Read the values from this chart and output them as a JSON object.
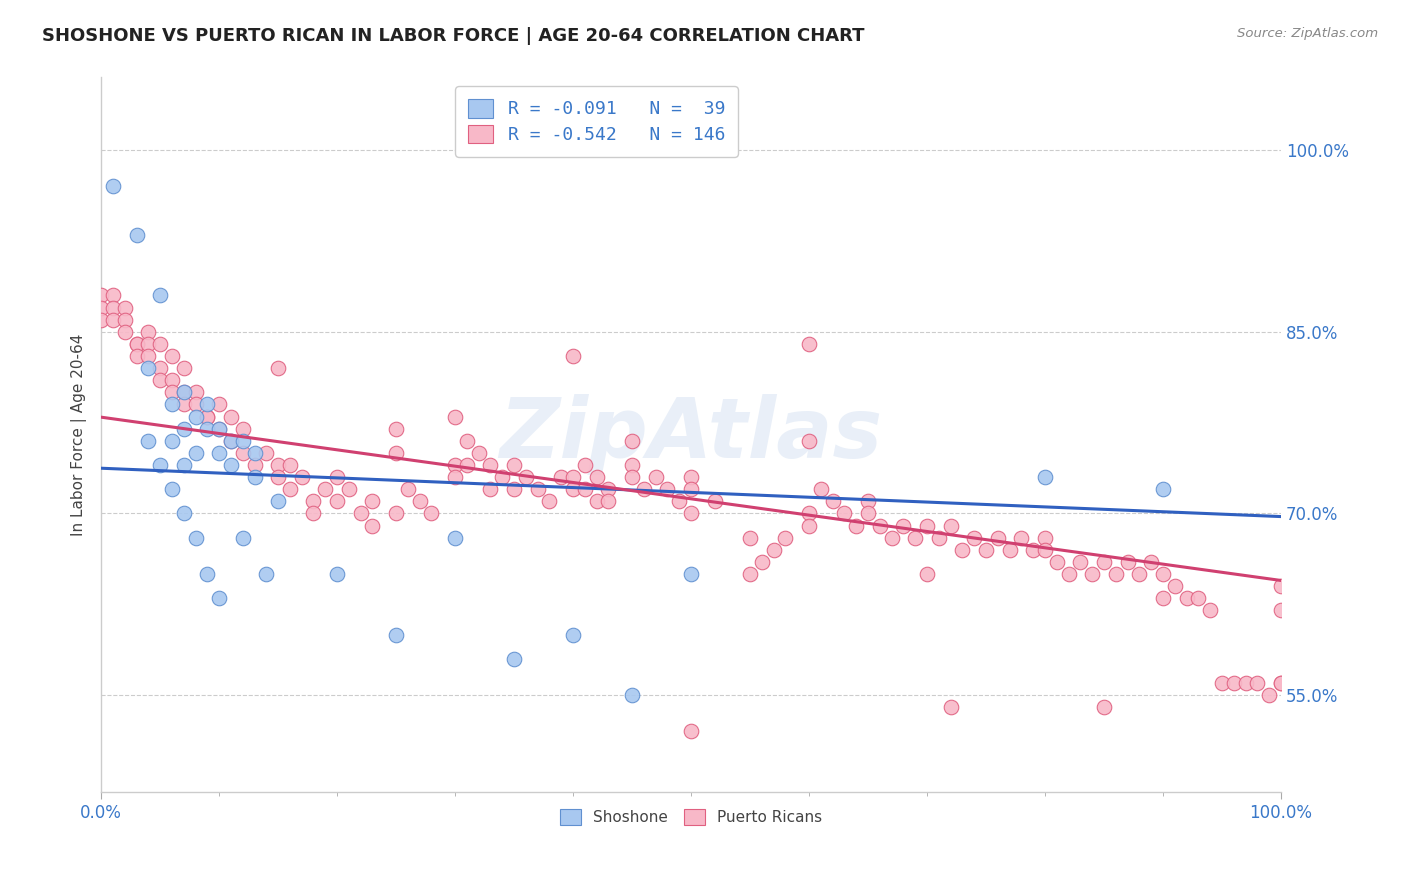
{
  "title": "SHOSHONE VS PUERTO RICAN IN LABOR FORCE | AGE 20-64 CORRELATION CHART",
  "source": "Source: ZipAtlas.com",
  "ylabel": "In Labor Force | Age 20-64",
  "xlim": [
    0.0,
    1.0
  ],
  "ylim": [
    0.47,
    1.06
  ],
  "yticks": [
    0.55,
    0.7,
    0.85,
    1.0
  ],
  "ytick_labels": [
    "55.0%",
    "70.0%",
    "85.0%",
    "100.0%"
  ],
  "xtick_labels": [
    "0.0%",
    "100.0%"
  ],
  "watermark": "ZipAtlas",
  "blue_R": -0.091,
  "blue_N": 39,
  "pink_R": -0.542,
  "pink_N": 146,
  "blue_color": "#a8c8f0",
  "pink_color": "#f8b8c8",
  "blue_edge_color": "#6090d0",
  "pink_edge_color": "#e06080",
  "blue_line_color": "#3060c0",
  "pink_line_color": "#d04070",
  "legend_label_blue": "Shoshone",
  "legend_label_pink": "Puerto Ricans",
  "blue_scatter": [
    [
      0.01,
      0.97
    ],
    [
      0.03,
      0.93
    ],
    [
      0.05,
      0.88
    ],
    [
      0.07,
      0.8
    ],
    [
      0.08,
      0.78
    ],
    [
      0.04,
      0.82
    ],
    [
      0.06,
      0.79
    ],
    [
      0.06,
      0.76
    ],
    [
      0.07,
      0.74
    ],
    [
      0.07,
      0.77
    ],
    [
      0.08,
      0.75
    ],
    [
      0.09,
      0.77
    ],
    [
      0.09,
      0.79
    ],
    [
      0.1,
      0.77
    ],
    [
      0.1,
      0.75
    ],
    [
      0.11,
      0.76
    ],
    [
      0.11,
      0.74
    ],
    [
      0.12,
      0.76
    ],
    [
      0.13,
      0.75
    ],
    [
      0.13,
      0.73
    ],
    [
      0.15,
      0.71
    ],
    [
      0.04,
      0.76
    ],
    [
      0.05,
      0.74
    ],
    [
      0.06,
      0.72
    ],
    [
      0.07,
      0.7
    ],
    [
      0.08,
      0.68
    ],
    [
      0.09,
      0.65
    ],
    [
      0.1,
      0.63
    ],
    [
      0.12,
      0.68
    ],
    [
      0.14,
      0.65
    ],
    [
      0.2,
      0.65
    ],
    [
      0.25,
      0.6
    ],
    [
      0.3,
      0.68
    ],
    [
      0.35,
      0.58
    ],
    [
      0.4,
      0.6
    ],
    [
      0.45,
      0.55
    ],
    [
      0.5,
      0.65
    ],
    [
      0.8,
      0.73
    ],
    [
      0.9,
      0.72
    ]
  ],
  "pink_scatter": [
    [
      0.0,
      0.88
    ],
    [
      0.0,
      0.87
    ],
    [
      0.0,
      0.86
    ],
    [
      0.01,
      0.88
    ],
    [
      0.01,
      0.87
    ],
    [
      0.01,
      0.86
    ],
    [
      0.02,
      0.87
    ],
    [
      0.02,
      0.86
    ],
    [
      0.02,
      0.85
    ],
    [
      0.03,
      0.84
    ],
    [
      0.03,
      0.84
    ],
    [
      0.03,
      0.83
    ],
    [
      0.04,
      0.85
    ],
    [
      0.04,
      0.84
    ],
    [
      0.04,
      0.83
    ],
    [
      0.05,
      0.84
    ],
    [
      0.05,
      0.82
    ],
    [
      0.05,
      0.81
    ],
    [
      0.06,
      0.83
    ],
    [
      0.06,
      0.81
    ],
    [
      0.06,
      0.8
    ],
    [
      0.07,
      0.82
    ],
    [
      0.07,
      0.8
    ],
    [
      0.07,
      0.79
    ],
    [
      0.08,
      0.8
    ],
    [
      0.08,
      0.79
    ],
    [
      0.09,
      0.78
    ],
    [
      0.09,
      0.78
    ],
    [
      0.1,
      0.79
    ],
    [
      0.1,
      0.77
    ],
    [
      0.11,
      0.78
    ],
    [
      0.11,
      0.76
    ],
    [
      0.12,
      0.77
    ],
    [
      0.12,
      0.75
    ],
    [
      0.13,
      0.74
    ],
    [
      0.14,
      0.75
    ],
    [
      0.15,
      0.82
    ],
    [
      0.15,
      0.74
    ],
    [
      0.15,
      0.73
    ],
    [
      0.16,
      0.74
    ],
    [
      0.16,
      0.72
    ],
    [
      0.17,
      0.73
    ],
    [
      0.18,
      0.71
    ],
    [
      0.18,
      0.7
    ],
    [
      0.19,
      0.72
    ],
    [
      0.2,
      0.73
    ],
    [
      0.2,
      0.71
    ],
    [
      0.21,
      0.72
    ],
    [
      0.22,
      0.7
    ],
    [
      0.23,
      0.71
    ],
    [
      0.23,
      0.69
    ],
    [
      0.25,
      0.77
    ],
    [
      0.25,
      0.75
    ],
    [
      0.25,
      0.7
    ],
    [
      0.26,
      0.72
    ],
    [
      0.27,
      0.71
    ],
    [
      0.28,
      0.7
    ],
    [
      0.3,
      0.78
    ],
    [
      0.3,
      0.74
    ],
    [
      0.3,
      0.73
    ],
    [
      0.31,
      0.76
    ],
    [
      0.31,
      0.74
    ],
    [
      0.32,
      0.75
    ],
    [
      0.33,
      0.74
    ],
    [
      0.33,
      0.72
    ],
    [
      0.34,
      0.73
    ],
    [
      0.35,
      0.74
    ],
    [
      0.35,
      0.72
    ],
    [
      0.36,
      0.73
    ],
    [
      0.37,
      0.72
    ],
    [
      0.38,
      0.71
    ],
    [
      0.39,
      0.73
    ],
    [
      0.4,
      0.83
    ],
    [
      0.4,
      0.73
    ],
    [
      0.4,
      0.72
    ],
    [
      0.41,
      0.74
    ],
    [
      0.41,
      0.72
    ],
    [
      0.42,
      0.73
    ],
    [
      0.42,
      0.71
    ],
    [
      0.43,
      0.72
    ],
    [
      0.43,
      0.71
    ],
    [
      0.45,
      0.76
    ],
    [
      0.45,
      0.74
    ],
    [
      0.45,
      0.73
    ],
    [
      0.46,
      0.72
    ],
    [
      0.47,
      0.73
    ],
    [
      0.48,
      0.72
    ],
    [
      0.49,
      0.71
    ],
    [
      0.5,
      0.73
    ],
    [
      0.5,
      0.72
    ],
    [
      0.5,
      0.7
    ],
    [
      0.5,
      0.52
    ],
    [
      0.52,
      0.71
    ],
    [
      0.55,
      0.68
    ],
    [
      0.55,
      0.65
    ],
    [
      0.56,
      0.66
    ],
    [
      0.57,
      0.67
    ],
    [
      0.58,
      0.68
    ],
    [
      0.6,
      0.76
    ],
    [
      0.6,
      0.7
    ],
    [
      0.6,
      0.69
    ],
    [
      0.61,
      0.72
    ],
    [
      0.62,
      0.71
    ],
    [
      0.63,
      0.7
    ],
    [
      0.64,
      0.69
    ],
    [
      0.65,
      0.71
    ],
    [
      0.65,
      0.7
    ],
    [
      0.66,
      0.69
    ],
    [
      0.67,
      0.68
    ],
    [
      0.68,
      0.69
    ],
    [
      0.69,
      0.68
    ],
    [
      0.7,
      0.69
    ],
    [
      0.7,
      0.65
    ],
    [
      0.71,
      0.68
    ],
    [
      0.72,
      0.69
    ],
    [
      0.72,
      0.54
    ],
    [
      0.73,
      0.67
    ],
    [
      0.74,
      0.68
    ],
    [
      0.75,
      0.67
    ],
    [
      0.76,
      0.68
    ],
    [
      0.77,
      0.67
    ],
    [
      0.78,
      0.68
    ],
    [
      0.79,
      0.67
    ],
    [
      0.8,
      0.68
    ],
    [
      0.8,
      0.67
    ],
    [
      0.81,
      0.66
    ],
    [
      0.82,
      0.65
    ],
    [
      0.83,
      0.66
    ],
    [
      0.84,
      0.65
    ],
    [
      0.85,
      0.66
    ],
    [
      0.85,
      0.54
    ],
    [
      0.86,
      0.65
    ],
    [
      0.87,
      0.66
    ],
    [
      0.88,
      0.65
    ],
    [
      0.89,
      0.66
    ],
    [
      0.9,
      0.65
    ],
    [
      0.9,
      0.63
    ],
    [
      0.91,
      0.64
    ],
    [
      0.92,
      0.63
    ],
    [
      0.93,
      0.63
    ],
    [
      0.94,
      0.62
    ],
    [
      0.95,
      0.56
    ],
    [
      0.96,
      0.56
    ],
    [
      0.97,
      0.56
    ],
    [
      0.98,
      0.56
    ],
    [
      0.99,
      0.55
    ],
    [
      1.0,
      0.64
    ],
    [
      1.0,
      0.62
    ],
    [
      1.0,
      0.56
    ],
    [
      1.0,
      0.56
    ],
    [
      0.6,
      0.84
    ]
  ]
}
